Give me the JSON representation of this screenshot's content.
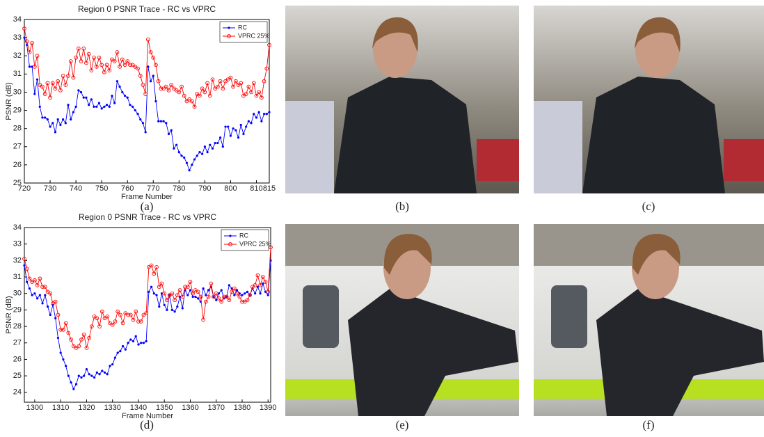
{
  "chart_data": [
    {
      "type": "line",
      "title": "Region 0 PSNR Trace - RC vs VPRC",
      "x_label": "Frame Number",
      "y_label": "PSNR (dB)",
      "x": [
        720,
        721,
        722,
        723,
        724,
        725,
        726,
        727,
        728,
        729,
        730,
        731,
        732,
        733,
        734,
        735,
        736,
        737,
        738,
        739,
        740,
        741,
        742,
        743,
        744,
        745,
        746,
        747,
        748,
        749,
        750,
        751,
        752,
        753,
        754,
        755,
        756,
        757,
        758,
        759,
        760,
        761,
        762,
        763,
        764,
        765,
        766,
        767,
        768,
        769,
        770,
        771,
        772,
        773,
        774,
        775,
        776,
        777,
        778,
        779,
        780,
        781,
        782,
        783,
        784,
        785,
        786,
        787,
        788,
        789,
        790,
        791,
        792,
        793,
        794,
        795,
        796,
        797,
        798,
        799,
        800,
        801,
        802,
        803,
        804,
        805,
        806,
        807,
        808,
        809,
        810,
        811,
        812,
        813,
        814,
        815
      ],
      "series": [
        {
          "name": "RC",
          "color": "#0000ff",
          "marker": "dot",
          "values": [
            33.0,
            32.6,
            31.4,
            31.4,
            29.9,
            30.7,
            29.2,
            28.6,
            28.6,
            28.5,
            28.1,
            28.3,
            27.8,
            28.5,
            28.2,
            28.5,
            28.3,
            29.3,
            28.5,
            28.9,
            29.2,
            30.1,
            30.0,
            29.7,
            29.7,
            29.3,
            29.6,
            29.2,
            29.2,
            29.4,
            29.1,
            29.2,
            29.3,
            29.2,
            29.8,
            29.4,
            30.6,
            30.3,
            30.0,
            29.8,
            29.7,
            29.3,
            29.2,
            29.0,
            28.8,
            28.5,
            28.3,
            27.8,
            31.4,
            30.6,
            30.9,
            29.5,
            28.4,
            28.4,
            28.4,
            28.3,
            27.7,
            27.9,
            26.9,
            27.1,
            26.7,
            26.5,
            26.4,
            26.1,
            25.7,
            26.0,
            26.3,
            26.5,
            26.7,
            26.6,
            27.0,
            26.7,
            27.1,
            26.9,
            27.2,
            27.2,
            27.5,
            27.0,
            28.1,
            28.1,
            27.6,
            28.0,
            27.9,
            27.5,
            28.2,
            27.7,
            28.1,
            28.4,
            28.3,
            28.8,
            28.6,
            28.9,
            28.4,
            28.8,
            28.8,
            28.9
          ]
        },
        {
          "name": "VPRC 25%",
          "color": "#ff0000",
          "marker": "circle",
          "values": [
            33.5,
            32.8,
            32.2,
            32.7,
            31.4,
            32.0,
            30.4,
            30.3,
            29.9,
            30.5,
            29.7,
            30.5,
            30.2,
            30.6,
            30.1,
            30.9,
            30.4,
            30.9,
            31.7,
            30.8,
            31.9,
            32.4,
            31.7,
            32.4,
            31.6,
            32.1,
            31.2,
            31.9,
            31.4,
            31.9,
            31.5,
            31.1,
            31.5,
            31.2,
            31.8,
            31.7,
            32.2,
            31.4,
            31.8,
            31.5,
            31.7,
            31.5,
            31.5,
            31.4,
            31.3,
            30.9,
            30.4,
            29.9,
            32.9,
            32.2,
            31.9,
            31.5,
            30.6,
            30.2,
            30.2,
            30.3,
            30.1,
            30.4,
            30.2,
            30.1,
            30.0,
            30.3,
            29.8,
            29.5,
            29.6,
            29.5,
            29.2,
            29.9,
            29.8,
            30.2,
            30.0,
            30.5,
            29.8,
            30.7,
            30.2,
            30.3,
            30.6,
            30.2,
            30.6,
            30.7,
            30.8,
            30.3,
            30.6,
            30.4,
            30.5,
            29.8,
            29.9,
            30.3,
            30.0,
            30.5,
            29.8,
            30.0,
            29.7,
            30.6,
            31.3,
            32.6
          ]
        }
      ],
      "xlim": [
        720,
        815
      ],
      "xticks": [
        720,
        730,
        740,
        750,
        760,
        770,
        780,
        790,
        800,
        810,
        815
      ],
      "ylim": [
        25,
        34
      ],
      "yticks": [
        25,
        26,
        27,
        28,
        29,
        30,
        31,
        32,
        33,
        34
      ],
      "legend": "upper right",
      "grid": false
    },
    {
      "type": "line",
      "title": "Region 0 PSNR Trace - RC vs VPRC",
      "x_label": "Frame Number",
      "y_label": "PSNR (dB)",
      "x": [
        1296,
        1297,
        1298,
        1299,
        1300,
        1301,
        1302,
        1303,
        1304,
        1305,
        1306,
        1307,
        1308,
        1309,
        1310,
        1311,
        1312,
        1313,
        1314,
        1315,
        1316,
        1317,
        1318,
        1319,
        1320,
        1321,
        1322,
        1323,
        1324,
        1325,
        1326,
        1327,
        1328,
        1329,
        1330,
        1331,
        1332,
        1333,
        1334,
        1335,
        1336,
        1337,
        1338,
        1339,
        1340,
        1341,
        1342,
        1343,
        1344,
        1345,
        1346,
        1347,
        1348,
        1349,
        1350,
        1351,
        1352,
        1353,
        1354,
        1355,
        1356,
        1357,
        1358,
        1359,
        1360,
        1361,
        1362,
        1363,
        1364,
        1365,
        1366,
        1367,
        1368,
        1369,
        1370,
        1371,
        1372,
        1373,
        1374,
        1375,
        1376,
        1377,
        1378,
        1379,
        1380,
        1381,
        1382,
        1383,
        1384,
        1385,
        1386,
        1387,
        1388,
        1389,
        1390,
        1391
      ],
      "series": [
        {
          "name": "RC",
          "color": "#0000ff",
          "marker": "dot",
          "values": [
            31.7,
            30.7,
            30.3,
            29.9,
            30.0,
            29.7,
            29.9,
            29.4,
            29.9,
            29.2,
            28.7,
            29.3,
            28.5,
            27.3,
            26.4,
            26.0,
            25.6,
            25.0,
            24.6,
            24.2,
            24.5,
            25.0,
            24.9,
            25.0,
            25.4,
            25.1,
            25.0,
            24.9,
            25.2,
            25.1,
            25.3,
            25.2,
            25.1,
            25.6,
            25.7,
            26.1,
            26.4,
            26.5,
            26.8,
            26.6,
            27.0,
            27.2,
            27.1,
            27.4,
            26.9,
            27.0,
            27.0,
            27.1,
            30.1,
            30.4,
            30.0,
            29.9,
            29.2,
            30.0,
            29.3,
            29.0,
            29.9,
            29.0,
            28.9,
            29.2,
            29.8,
            29.1,
            30.2,
            29.9,
            30.2,
            29.8,
            29.8,
            29.7,
            29.5,
            30.3,
            29.9,
            30.2,
            30.4,
            29.8,
            29.6,
            30.0,
            30.2,
            29.7,
            29.8,
            30.5,
            30.3,
            29.9,
            30.2,
            30.0,
            29.9,
            30.0,
            30.1,
            29.9,
            30.3,
            30.0,
            30.4,
            30.0,
            30.6,
            30.1,
            29.9,
            32.0
          ]
        },
        {
          "name": "VPRC 25%",
          "color": "#ff0000",
          "marker": "circle",
          "values": [
            32.1,
            31.5,
            30.9,
            30.7,
            30.8,
            30.5,
            30.9,
            30.4,
            30.4,
            30.1,
            30.0,
            29.4,
            29.5,
            28.7,
            27.8,
            27.8,
            28.2,
            27.6,
            27.2,
            26.8,
            26.7,
            26.8,
            27.2,
            27.5,
            26.7,
            27.3,
            28.0,
            28.6,
            28.5,
            28.0,
            28.9,
            28.5,
            28.6,
            28.2,
            28.1,
            28.3,
            28.9,
            28.7,
            28.2,
            28.8,
            28.7,
            28.7,
            28.4,
            28.9,
            28.3,
            28.3,
            28.7,
            28.8,
            31.6,
            31.7,
            31.2,
            31.6,
            30.4,
            30.6,
            30.0,
            29.6,
            29.9,
            30.0,
            29.6,
            29.9,
            30.2,
            29.8,
            30.4,
            30.4,
            30.7,
            30.0,
            30.2,
            30.1,
            29.8,
            28.4,
            29.5,
            29.8,
            30.6,
            29.8,
            30.0,
            29.7,
            29.5,
            29.8,
            29.8,
            29.6,
            30.1,
            30.3,
            30.0,
            29.8,
            29.5,
            29.5,
            29.6,
            29.9,
            30.4,
            30.5,
            31.1,
            30.5,
            31.0,
            30.7,
            30.1,
            32.8
          ]
        }
      ],
      "xlim": [
        1296,
        1391
      ],
      "xticks": [
        1300,
        1310,
        1320,
        1330,
        1340,
        1350,
        1360,
        1370,
        1380,
        1390
      ],
      "ylim": [
        23.4,
        34
      ],
      "yticks": [
        24,
        25,
        26,
        27,
        28,
        29,
        30,
        31,
        32,
        33,
        34
      ],
      "legend": "upper right",
      "grid": false
    }
  ],
  "captions": [
    "(a)",
    "(b)",
    "(c)",
    "(d)",
    "(e)",
    "(f)"
  ]
}
